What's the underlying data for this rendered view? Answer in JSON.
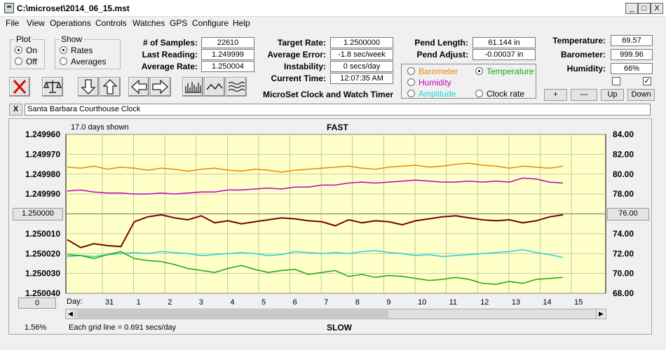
{
  "window": {
    "title": "C:\\microset\\2014_06_15.mst",
    "min": "_",
    "max": "□",
    "close": "X"
  },
  "menu": [
    "File",
    "View",
    "Operations",
    "Controls",
    "Watches",
    "GPS",
    "Configure",
    "Help"
  ],
  "plot": {
    "title": "Plot",
    "on": "On",
    "off": "Off",
    "selected": "On"
  },
  "show": {
    "title": "Show",
    "rates": "Rates",
    "averages": "Averages",
    "selected": "Rates"
  },
  "stats": {
    "samples_label": "# of Samples:",
    "samples": "22610",
    "last_label": "Last Reading:",
    "last": "1.249999",
    "avg_label": "Average Rate:",
    "avg": "1.250004"
  },
  "targets": {
    "target_label": "Target Rate:",
    "target": "1.2500000",
    "error_label": "Average Error:",
    "error": "-1.8 sec/week",
    "instab_label": "Instability:",
    "instab": "0 secs/day",
    "time_label": "Current Time:",
    "time": "12:07:35 AM"
  },
  "pend": {
    "length_label": "Pend Length:",
    "length": "61.144 in",
    "adjust_label": "Pend Adjust:",
    "adjust": "-0.00037 in"
  },
  "sensors": {
    "barometer": "Barometer",
    "temperature": "Temperature",
    "humidity": "Humidity",
    "amplitude": "Amplitude",
    "clock_rate": "Clock rate",
    "selected": "Temperature",
    "colors": {
      "barometer": "#e58a00",
      "temperature": "#13a813",
      "humidity": "#c000c0",
      "amplitude": "#20d0e0",
      "clock_rate": "#000000"
    }
  },
  "env": {
    "temp_label": "Temperature:",
    "temp": "69.57",
    "baro_label": "Barometer:",
    "baro": "999.96",
    "hum_label": "Humidity:",
    "hum": "66%"
  },
  "buttons": {
    "plus": "+",
    "minus": "—",
    "up": "Up",
    "down": "Down"
  },
  "app_caption": "MicroSet Clock and Watch Timer",
  "clock_name": "Santa Barbara Courthouse Clock",
  "close_x": "X",
  "chart": {
    "days_shown": "17.0 days shown",
    "fast": "FAST",
    "slow": "SLOW",
    "grid_note": "Each grid line = 0.691 secs/day",
    "percent": "1.56%",
    "day_label": "Day:",
    "left_box": "1.250000",
    "right_box": "76.00",
    "bottom_left_box": "0"
  },
  "chart_data": {
    "type": "line",
    "left_ticks": [
      "1.249960",
      "1.249970",
      "1.249980",
      "1.249990",
      "1.250000",
      "1.250010",
      "1.250020",
      "1.250030",
      "1.250040"
    ],
    "right_ticks": [
      "84.00",
      "82.00",
      "80.00",
      "78.00",
      "76.00",
      "74.00",
      "72.00",
      "70.00",
      "68.00"
    ],
    "day_ticks": [
      "31",
      "1",
      "2",
      "3",
      "4",
      "5",
      "6",
      "7",
      "8",
      "9",
      "10",
      "11",
      "12",
      "13",
      "14",
      "15"
    ],
    "ylim_rate": [
      1.24996,
      1.25004
    ],
    "ylim_right": [
      68,
      84
    ],
    "series": [
      {
        "key": "barometer",
        "color": "#e58a00",
        "values": [
          80.7,
          80.6,
          80.8,
          80.5,
          80.7,
          80.6,
          80.4,
          80.6,
          80.5,
          80.3,
          80.5,
          80.6,
          80.4,
          80.3,
          80.5,
          80.4,
          80.2,
          80.4,
          80.5,
          80.6,
          80.7,
          80.8,
          80.6,
          80.5,
          80.7,
          80.8,
          80.9,
          80.7,
          80.8,
          81.0,
          81.1,
          80.9,
          80.8,
          80.6,
          80.8,
          80.7,
          80.6,
          80.8
        ]
      },
      {
        "key": "humidity",
        "color": "#c000c0",
        "values": [
          78.3,
          78.4,
          78.2,
          78.1,
          78.1,
          78.0,
          78.0,
          78.1,
          78.0,
          78.1,
          78.2,
          78.2,
          78.4,
          78.4,
          78.5,
          78.6,
          78.5,
          78.7,
          78.7,
          78.9,
          78.9,
          79.1,
          79.2,
          79.1,
          79.2,
          79.3,
          79.4,
          79.3,
          79.2,
          79.2,
          79.3,
          79.2,
          79.3,
          79.2,
          79.6,
          79.5,
          79.2,
          79.1
        ]
      },
      {
        "key": "clock_rate",
        "color": "#7a0000",
        "values": [
          73.4,
          72.6,
          73.0,
          72.8,
          72.7,
          75.2,
          75.7,
          75.9,
          75.6,
          75.4,
          75.8,
          75.1,
          75.3,
          75.0,
          75.2,
          75.4,
          75.6,
          75.5,
          75.3,
          75.2,
          74.8,
          75.4,
          75.1,
          75.3,
          75.2,
          74.9,
          75.3,
          75.5,
          75.7,
          75.8,
          75.6,
          75.4,
          75.3,
          75.4,
          75.1,
          75.3,
          75.7,
          75.9
        ]
      },
      {
        "key": "amplitude",
        "color": "#20d0e0",
        "values": [
          71.7,
          71.8,
          71.7,
          71.9,
          72.0,
          72.1,
          72.0,
          72.2,
          72.1,
          72.0,
          71.8,
          71.9,
          72.0,
          72.1,
          72.0,
          71.8,
          71.9,
          72.2,
          72.1,
          72.0,
          72.1,
          72.0,
          72.2,
          72.3,
          72.1,
          72.0,
          71.8,
          71.9,
          71.7,
          71.8,
          71.9,
          72.0,
          72.1,
          72.2,
          72.4,
          72.1,
          71.9,
          71.6
        ]
      },
      {
        "key": "temperature",
        "color": "#13a813",
        "values": [
          71.9,
          71.8,
          71.5,
          71.9,
          72.2,
          71.5,
          71.3,
          71.2,
          70.9,
          70.5,
          70.3,
          70.1,
          70.5,
          70.8,
          70.4,
          70.1,
          70.3,
          70.4,
          69.9,
          70.1,
          70.3,
          69.7,
          69.9,
          69.6,
          69.8,
          69.7,
          69.5,
          69.3,
          69.4,
          69.6,
          69.4,
          69.0,
          68.9,
          69.2,
          69.0,
          69.4,
          69.5,
          69.6
        ]
      }
    ]
  }
}
